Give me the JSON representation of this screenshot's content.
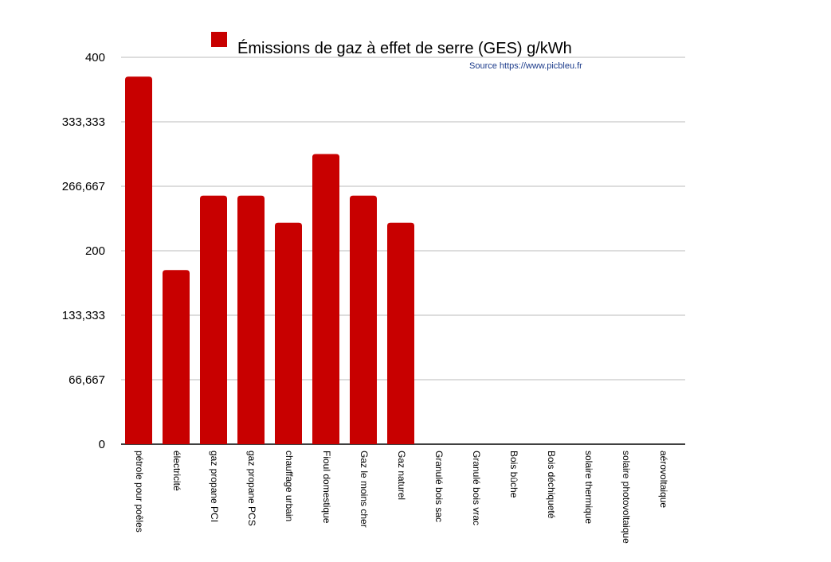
{
  "chart_data": {
    "type": "bar",
    "series": [
      {
        "name": "Émissions de gaz à effet de serre (GES) g/kWh",
        "color": "#c80000",
        "values": [
          380,
          180,
          257,
          257,
          229,
          300,
          257,
          229,
          0,
          0,
          0,
          0,
          0,
          0,
          0
        ]
      }
    ],
    "categories": [
      "pétrole pour poêles",
      "électricité",
      "gaz propane PCI",
      "gaz propane PCS",
      "chauffage urbain",
      "Fioul domestique",
      "Gaz le moins cher",
      "Gaz naturel",
      "Granulé bois sac",
      "Granulé bois vrac",
      "Bois bûche",
      "Bois déchiqueté",
      "solaire thermique",
      "solaire photovoltaique",
      "aérovoltaique"
    ],
    "annotation": "Source https://www.picbleu.fr",
    "ylim": [
      0,
      400
    ],
    "yticks": [
      0,
      {
        "value": 66.667,
        "label": "66,667"
      },
      {
        "value": 133.333,
        "label": "133,333"
      },
      200,
      {
        "value": 266.667,
        "label": "266,667"
      },
      {
        "value": 333.333,
        "label": "333,333"
      },
      400
    ],
    "grid": true
  }
}
